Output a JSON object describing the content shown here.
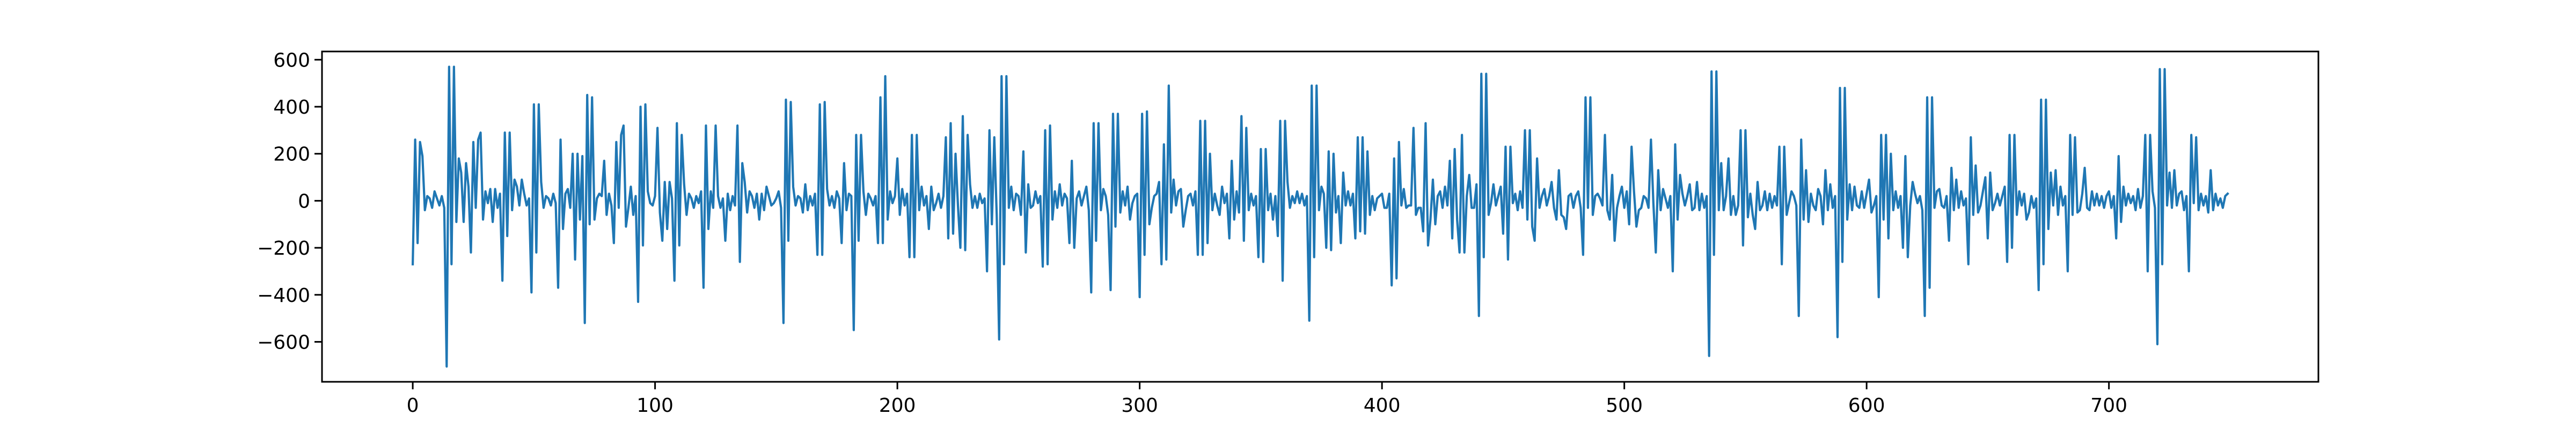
{
  "chart_data": {
    "type": "line",
    "color": "#1f77b4",
    "x": [
      0,
      1,
      2,
      3,
      4,
      5,
      6,
      7,
      8,
      9,
      10,
      11,
      12,
      13,
      14,
      15,
      16,
      17,
      18,
      19,
      20,
      21,
      22,
      23,
      24,
      25,
      26,
      27,
      28,
      29,
      30,
      31,
      32,
      33,
      34,
      35,
      36,
      37,
      38,
      39,
      40,
      41,
      42,
      43,
      44,
      45,
      46,
      47,
      48,
      49,
      50,
      51,
      52,
      53,
      54,
      55,
      56,
      57,
      58,
      59,
      60,
      61,
      62,
      63,
      64,
      65,
      66,
      67,
      68,
      69,
      70,
      71,
      72,
      73,
      74,
      75,
      76,
      77,
      78,
      79,
      80,
      81,
      82,
      83,
      84,
      85,
      86,
      87,
      88,
      89,
      90,
      91,
      92,
      93,
      94,
      95,
      96,
      97,
      98,
      99,
      100,
      101,
      102,
      103,
      104,
      105,
      106,
      107,
      108,
      109,
      110,
      111,
      112,
      113,
      114,
      115,
      116,
      117,
      118,
      119,
      120,
      121,
      122,
      123,
      124,
      125,
      126,
      127,
      128,
      129,
      130,
      131,
      132,
      133,
      134,
      135,
      136,
      137,
      138,
      139,
      140,
      141,
      142,
      143,
      144,
      145,
      146,
      147,
      148,
      149,
      150,
      151,
      152,
      153,
      154,
      155,
      156,
      157,
      158,
      159,
      160,
      161,
      162,
      163,
      164,
      165,
      166,
      167,
      168,
      169,
      170,
      171,
      172,
      173,
      174,
      175,
      176,
      177,
      178,
      179,
      180,
      181,
      182,
      183,
      184,
      185,
      186,
      187,
      188,
      189,
      190,
      191,
      192,
      193,
      194,
      195,
      196,
      197,
      198,
      199,
      200,
      201,
      202,
      203,
      204,
      205,
      206,
      207,
      208,
      209,
      210,
      211,
      212,
      213,
      214,
      215,
      216,
      217,
      218,
      219,
      220,
      221,
      222,
      223,
      224,
      225,
      226,
      227,
      228,
      229,
      230,
      231,
      232,
      233,
      234,
      235,
      236,
      237,
      238,
      239,
      240,
      241,
      242,
      243,
      244,
      245,
      246,
      247,
      248,
      249,
      250,
      251,
      252,
      253,
      254,
      255,
      256,
      257,
      258,
      259,
      260,
      261,
      262,
      263,
      264,
      265,
      266,
      267,
      268,
      269,
      270,
      271,
      272,
      273,
      274,
      275,
      276,
      277,
      278,
      279,
      280,
      281,
      282,
      283,
      284,
      285,
      286,
      287,
      288,
      289,
      290,
      291,
      292,
      293,
      294,
      295,
      296,
      297,
      298,
      299,
      300,
      301,
      302,
      303,
      304,
      305,
      306,
      307,
      308,
      309,
      310,
      311,
      312,
      313,
      314,
      315,
      316,
      317,
      318,
      319,
      320,
      321,
      322,
      323,
      324,
      325,
      326,
      327,
      328,
      329,
      330,
      331,
      332,
      333,
      334,
      335,
      336,
      337,
      338,
      339,
      340,
      341,
      342,
      343,
      344,
      345,
      346,
      347,
      348,
      349,
      350,
      351,
      352,
      353,
      354,
      355,
      356,
      357,
      358,
      359,
      360,
      361,
      362,
      363,
      364,
      365,
      366,
      367,
      368,
      369,
      370,
      371,
      372,
      373,
      374,
      375,
      376,
      377,
      378,
      379,
      380,
      381,
      382,
      383,
      384,
      385,
      386,
      387,
      388,
      389,
      390,
      391,
      392,
      393,
      394,
      395,
      396,
      397,
      398,
      399,
      400,
      401,
      402,
      403,
      404,
      405,
      406,
      407,
      408,
      409,
      410,
      411,
      412,
      413,
      414,
      415,
      416,
      417,
      418,
      419,
      420,
      421,
      422,
      423,
      424,
      425,
      426,
      427,
      428,
      429,
      430,
      431,
      432,
      433,
      434,
      435,
      436,
      437,
      438,
      439,
      440,
      441,
      442,
      443,
      444,
      445,
      446,
      447,
      448,
      449,
      450,
      451,
      452,
      453,
      454,
      455,
      456,
      457,
      458,
      459,
      460,
      461,
      462,
      463,
      464,
      465,
      466,
      467,
      468,
      469,
      470,
      471,
      472,
      473,
      474,
      475,
      476,
      477,
      478,
      479,
      480,
      481,
      482,
      483,
      484,
      485,
      486,
      487,
      488,
      489,
      490,
      491,
      492,
      493,
      494,
      495,
      496,
      497,
      498,
      499,
      500,
      501,
      502,
      503,
      504,
      505,
      506,
      507,
      508,
      509,
      510,
      511,
      512,
      513,
      514,
      515,
      516,
      517,
      518,
      519,
      520,
      521,
      522,
      523,
      524,
      525,
      526,
      527,
      528,
      529,
      530,
      531,
      532,
      533,
      534,
      535,
      536,
      537,
      538,
      539,
      540,
      541,
      542,
      543,
      544,
      545,
      546,
      547,
      548,
      549,
      550,
      551,
      552,
      553,
      554,
      555,
      556,
      557,
      558,
      559,
      560,
      561,
      562,
      563,
      564,
      565,
      566,
      567,
      568,
      569,
      570,
      571,
      572,
      573,
      574,
      575,
      576,
      577,
      578,
      579,
      580,
      581,
      582,
      583,
      584,
      585,
      586,
      587,
      588,
      589,
      590,
      591,
      592,
      593,
      594,
      595,
      596,
      597,
      598,
      599,
      600,
      601,
      602,
      603,
      604,
      605,
      606,
      607,
      608,
      609,
      610,
      611,
      612,
      613,
      614,
      615,
      616,
      617,
      618,
      619,
      620,
      621,
      622,
      623,
      624,
      625,
      626,
      627,
      628,
      629,
      630,
      631,
      632,
      633,
      634,
      635,
      636,
      637,
      638,
      639,
      640,
      641,
      642,
      643,
      644,
      645,
      646,
      647,
      648,
      649,
      650,
      651,
      652,
      653,
      654,
      655,
      656,
      657,
      658,
      659,
      660,
      661,
      662,
      663,
      664,
      665,
      666,
      667,
      668,
      669,
      670,
      671,
      672,
      673,
      674,
      675,
      676,
      677,
      678,
      679,
      680,
      681,
      682,
      683,
      684,
      685,
      686,
      687,
      688,
      689,
      690,
      691,
      692,
      693,
      694,
      695,
      696,
      697,
      698,
      699,
      700,
      701,
      702,
      703,
      704,
      705,
      706,
      707,
      708,
      709,
      710,
      711,
      712,
      713,
      714,
      715,
      716,
      717,
      718,
      719,
      720,
      721,
      722,
      723,
      724,
      725,
      726,
      727,
      728,
      729,
      730,
      731,
      732,
      733,
      734,
      735,
      736,
      737,
      738,
      739,
      740,
      741,
      742,
      743,
      744,
      745,
      746,
      747,
      748,
      749
    ],
    "values": [
      -270,
      260,
      -180,
      250,
      190,
      -40,
      20,
      10,
      -30,
      40,
      10,
      -20,
      20,
      -30,
      -705,
      570,
      -270,
      570,
      -90,
      180,
      120,
      -90,
      160,
      60,
      -220,
      250,
      -30,
      260,
      290,
      -80,
      40,
      -10,
      50,
      -90,
      50,
      -30,
      30,
      -340,
      290,
      -150,
      290,
      -40,
      90,
      60,
      -20,
      90,
      30,
      -20,
      10,
      -390,
      410,
      -220,
      410,
      80,
      -30,
      20,
      10,
      -20,
      30,
      -10,
      -370,
      260,
      -120,
      30,
      50,
      -30,
      200,
      -250,
      200,
      -80,
      190,
      -520,
      450,
      -100,
      440,
      -80,
      10,
      30,
      20,
      170,
      -60,
      30,
      -20,
      -180,
      250,
      -30,
      280,
      320,
      -110,
      -30,
      60,
      -60,
      20,
      -430,
      400,
      -190,
      410,
      40,
      -10,
      -20,
      20,
      310,
      -50,
      -170,
      80,
      -120,
      80,
      10,
      -340,
      330,
      -190,
      280,
      70,
      -60,
      30,
      10,
      -30,
      20,
      -10,
      40,
      -370,
      320,
      -120,
      40,
      -30,
      320,
      20,
      -30,
      10,
      -170,
      30,
      -40,
      20,
      -20,
      320,
      -260,
      160,
      80,
      -50,
      40,
      20,
      -30,
      30,
      -80,
      30,
      -40,
      60,
      20,
      -20,
      -10,
      10,
      40,
      -30,
      -520,
      430,
      -170,
      420,
      60,
      -20,
      20,
      10,
      -50,
      70,
      -40,
      20,
      -20,
      30,
      -230,
      410,
      -230,
      420,
      50,
      -20,
      20,
      -30,
      40,
      10,
      -180,
      160,
      -40,
      30,
      20,
      -550,
      280,
      -170,
      280,
      40,
      -60,
      30,
      10,
      -20,
      20,
      -180,
      440,
      -180,
      530,
      -80,
      40,
      -10,
      20,
      180,
      -60,
      50,
      -20,
      30,
      -240,
      280,
      -240,
      280,
      -40,
      60,
      -20,
      20,
      -120,
      60,
      -40,
      -10,
      30,
      -30,
      20,
      270,
      -160,
      330,
      -140,
      200,
      -20,
      -200,
      360,
      -210,
      280,
      70,
      -30,
      20,
      -30,
      30,
      -10,
      10,
      -300,
      300,
      -100,
      270,
      -60,
      -590,
      530,
      -270,
      530,
      -30,
      60,
      -40,
      30,
      20,
      -60,
      210,
      -220,
      70,
      -30,
      -20,
      40,
      -10,
      20,
      -280,
      300,
      -270,
      320,
      -80,
      40,
      -30,
      70,
      -20,
      30,
      10,
      -180,
      170,
      -200,
      10,
      40,
      -20,
      20,
      60,
      -40,
      -390,
      330,
      -170,
      330,
      -40,
      50,
      20,
      -60,
      -380,
      370,
      -110,
      370,
      -50,
      40,
      -20,
      60,
      -80,
      -10,
      20,
      30,
      -410,
      370,
      -230,
      380,
      -100,
      -30,
      20,
      30,
      80,
      -270,
      240,
      -250,
      490,
      -50,
      90,
      -20,
      40,
      50,
      -110,
      -40,
      20,
      30,
      -20,
      40,
      -230,
      340,
      -230,
      340,
      -180,
      200,
      -40,
      30,
      -20,
      -60,
      60,
      -10,
      30,
      -160,
      170,
      -80,
      40,
      -50,
      360,
      -170,
      310,
      -40,
      30,
      -20,
      20,
      -240,
      220,
      -260,
      220,
      -40,
      30,
      -80,
      20,
      -150,
      340,
      -340,
      340,
      80,
      -30,
      20,
      -10,
      40,
      -10,
      30,
      -20,
      20,
      -510,
      490,
      -240,
      490,
      -40,
      60,
      30,
      -200,
      210,
      -210,
      200,
      -50,
      20,
      -180,
      120,
      -20,
      40,
      -20,
      30,
      -160,
      270,
      -130,
      270,
      -140,
      210,
      -60,
      20,
      -40,
      10,
      20,
      30,
      -30,
      -30,
      30,
      -360,
      180,
      -330,
      250,
      -20,
      50,
      -30,
      -20,
      -20,
      310,
      -60,
      -30,
      -30,
      -130,
      330,
      -190,
      -80,
      90,
      -100,
      20,
      40,
      -30,
      60,
      -20,
      170,
      -160,
      220,
      -80,
      -220,
      280,
      -220,
      20,
      110,
      -30,
      -30,
      70,
      -490,
      540,
      -240,
      540,
      -60,
      -10,
      70,
      -20,
      20,
      60,
      -140,
      230,
      -250,
      230,
      -10,
      30,
      -40,
      40,
      -30,
      300,
      -80,
      300,
      -110,
      -170,
      180,
      -30,
      20,
      50,
      -20,
      20,
      80,
      -30,
      -80,
      130,
      -60,
      -70,
      -120,
      20,
      30,
      -30,
      20,
      40,
      -30,
      -230,
      440,
      -30,
      440,
      -60,
      20,
      30,
      10,
      -20,
      280,
      -40,
      -80,
      110,
      -170,
      -30,
      20,
      60,
      -30,
      40,
      -100,
      230,
      40,
      -110,
      -40,
      -30,
      20,
      10,
      -30,
      260,
      -10,
      -220,
      130,
      -40,
      50,
      10,
      -30,
      20,
      -300,
      240,
      -80,
      110,
      30,
      -20,
      20,
      70,
      -40,
      -30,
      80,
      -40,
      30,
      -30,
      20,
      -660,
      550,
      -230,
      550,
      -40,
      160,
      -40,
      20,
      180,
      -60,
      20,
      -60,
      -20,
      300,
      -190,
      300,
      -70,
      30,
      -60,
      -120,
      80,
      -40,
      -20,
      40,
      -40,
      30,
      -30,
      20,
      -20,
      230,
      -270,
      230,
      -60,
      -10,
      40,
      20,
      -20,
      -490,
      260,
      -80,
      130,
      -90,
      30,
      -20,
      -40,
      50,
      20,
      -100,
      130,
      -40,
      70,
      -30,
      20,
      -580,
      480,
      -260,
      480,
      -80,
      70,
      -40,
      60,
      -20,
      -30,
      40,
      -30,
      30,
      90,
      -50,
      -20,
      20,
      -410,
      280,
      -80,
      280,
      -160,
      200,
      -40,
      40,
      -30,
      20,
      -200,
      190,
      -240,
      -20,
      80,
      30,
      -10,
      20,
      -40,
      -490,
      440,
      -370,
      440,
      -30,
      40,
      50,
      -20,
      -30,
      20,
      -170,
      140,
      -40,
      90,
      -30,
      40,
      -20,
      10,
      -270,
      270,
      -60,
      150,
      -50,
      -20,
      40,
      100,
      -160,
      120,
      -40,
      -10,
      30,
      -20,
      20,
      60,
      -260,
      280,
      -200,
      280,
      -60,
      40,
      -20,
      30,
      -80,
      -50,
      20,
      -30,
      10,
      -380,
      430,
      -270,
      430,
      -120,
      120,
      -20,
      130,
      -60,
      60,
      -20,
      20,
      -300,
      280,
      -60,
      270,
      -50,
      -40,
      30,
      140,
      -30,
      -40,
      40,
      -20,
      30,
      -20,
      20,
      -30,
      20,
      40,
      -30,
      20,
      -160,
      190,
      -90,
      60,
      -20,
      30,
      -10,
      20,
      -40,
      50,
      -30,
      20,
      280,
      -300,
      280,
      40,
      -30,
      -610,
      560,
      -270,
      560,
      -20,
      120,
      -30,
      130,
      -20,
      30,
      40,
      -40,
      20,
      -300,
      280,
      -10,
      270,
      -40,
      30,
      -20,
      20,
      -50,
      130,
      -40,
      30,
      -20,
      10,
      -30,
      20,
      30
    ],
    "xlim": [
      -37.45,
      786.45
    ],
    "xticks": [
      0,
      100,
      200,
      300,
      400,
      500,
      600,
      700
    ],
    "ylim": [
      -770,
      635
    ],
    "yticks": [
      {
        "value": -600,
        "label": "−600"
      },
      {
        "value": -400,
        "label": "−400"
      },
      {
        "value": -200,
        "label": "−200"
      },
      0,
      200,
      400,
      600
    ],
    "grid": false
  }
}
